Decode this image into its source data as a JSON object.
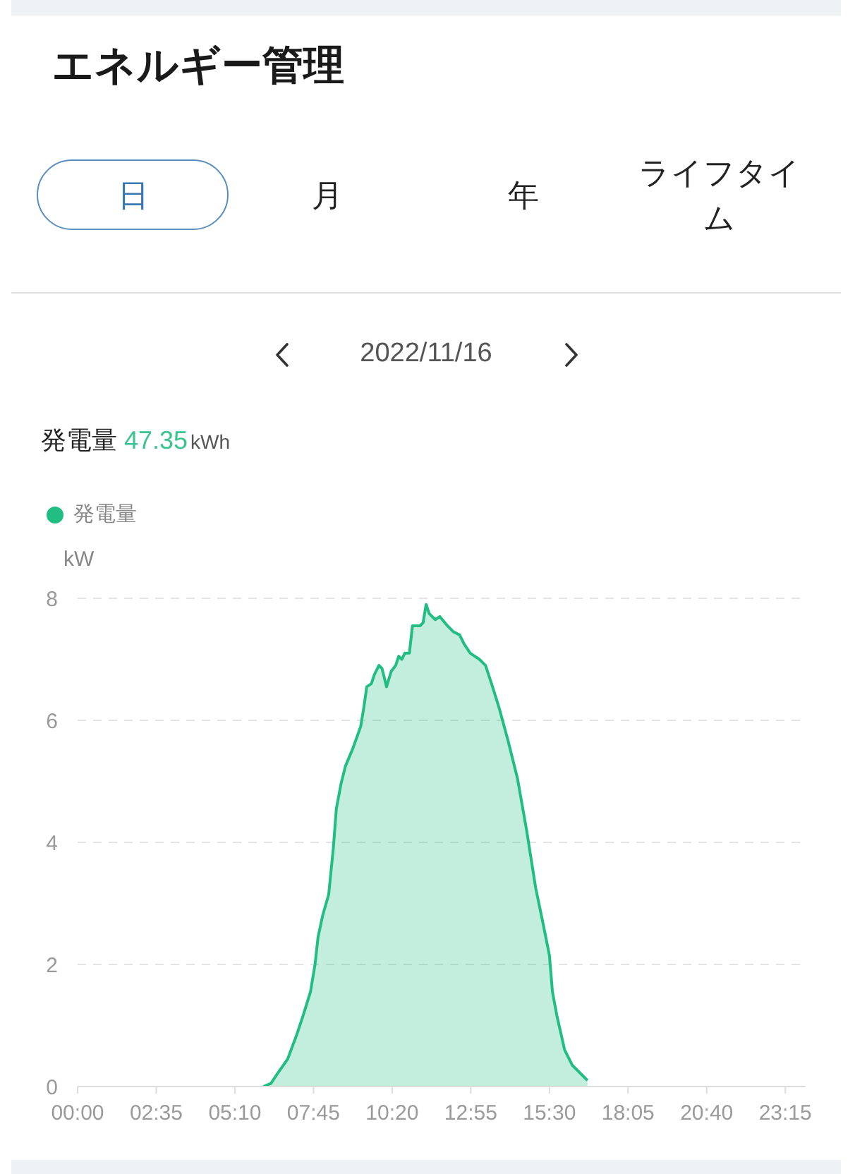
{
  "chart_data": {
    "type": "area",
    "title": "エネルギー管理",
    "ylabel": "kW",
    "annotations": [
      "日",
      "月",
      "年",
      "ライフタイム",
      "2022/11/16",
      "発電量",
      "47.35",
      "kWh"
    ],
    "x": [
      6.1,
      6.35,
      6.55,
      6.9,
      7.2,
      7.4,
      7.65,
      7.8,
      7.9,
      8.05,
      8.25,
      8.4,
      8.5,
      8.65,
      8.8,
      9.05,
      9.3,
      9.4,
      9.5,
      9.65,
      9.75,
      9.9,
      10.0,
      10.15,
      10.3,
      10.45,
      10.55,
      10.65,
      10.75,
      10.9,
      11.0,
      11.1,
      11.25,
      11.35,
      11.45,
      11.55,
      11.75,
      11.9,
      12.15,
      12.35,
      12.55,
      12.7,
      12.9,
      13.2,
      13.4,
      13.6,
      13.85,
      14.15,
      14.45,
      14.75,
      15.05,
      15.3,
      15.5,
      15.6,
      15.75,
      16.0,
      16.25,
      16.45,
      16.75
    ],
    "series": [
      {
        "name": "発電量",
        "color": "#22bd82",
        "values": [
          0,
          0.05,
          0.2,
          0.45,
          0.85,
          1.15,
          1.55,
          2.0,
          2.45,
          2.8,
          3.15,
          3.9,
          4.55,
          4.95,
          5.25,
          5.55,
          5.9,
          6.2,
          6.55,
          6.6,
          6.75,
          6.9,
          6.85,
          6.55,
          6.8,
          6.9,
          7.05,
          7.0,
          7.1,
          7.1,
          7.55,
          7.55,
          7.55,
          7.6,
          7.9,
          7.75,
          7.65,
          7.7,
          7.55,
          7.45,
          7.4,
          7.25,
          7.1,
          7.0,
          6.9,
          6.6,
          6.2,
          5.65,
          5.05,
          4.2,
          3.25,
          2.65,
          2.15,
          1.55,
          1.15,
          0.6,
          0.35,
          0.25,
          0.1
        ]
      }
    ],
    "xlim": [
      0,
      23.9167
    ],
    "xticks": [
      {
        "value": 0,
        "label": "00:00"
      },
      {
        "value": 2.58333,
        "label": "02:35"
      },
      {
        "value": 5.16667,
        "label": "05:10"
      },
      {
        "value": 7.75,
        "label": "07:45"
      },
      {
        "value": 10.33333,
        "label": "10:20"
      },
      {
        "value": 12.91667,
        "label": "12:55"
      },
      {
        "value": 15.5,
        "label": "15:30"
      },
      {
        "value": 18.08333,
        "label": "18:05"
      },
      {
        "value": 20.66667,
        "label": "20:40"
      },
      {
        "value": 23.25,
        "label": "23:15"
      }
    ],
    "ylim": [
      0,
      8
    ],
    "yticks": [
      0,
      2,
      4,
      6,
      8
    ],
    "grid": "y",
    "legend": "top left"
  }
}
